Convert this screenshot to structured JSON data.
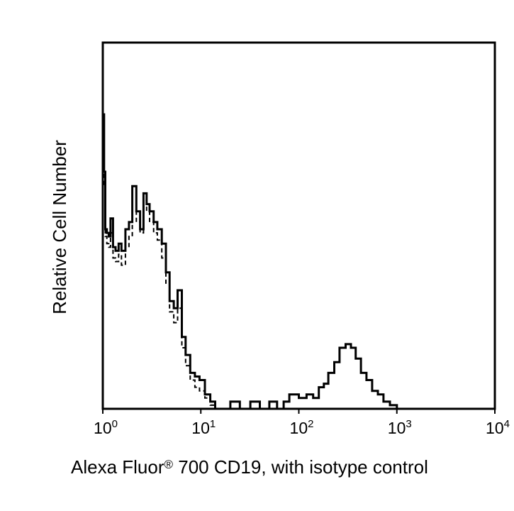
{
  "chart_data": {
    "type": "line",
    "ylabel": "Relative Cell Number",
    "xlabel_main": "Alexa Fluor",
    "xlabel_reg": "®",
    "xlabel_rest": " 700 CD19, with isotype control",
    "xscale": "log",
    "xlim": [
      1,
      10000
    ],
    "ylim": [
      0,
      100
    ],
    "grid": false,
    "x_ticks": [
      {
        "base": "10",
        "exp": "0",
        "value": 1
      },
      {
        "base": "10",
        "exp": "1",
        "value": 10
      },
      {
        "base": "10",
        "exp": "2",
        "value": 100
      },
      {
        "base": "10",
        "exp": "3",
        "value": 1000
      },
      {
        "base": "10",
        "exp": "4",
        "value": 10000
      }
    ],
    "series": [
      {
        "style": "solid",
        "x": [
          1.0,
          1.03,
          1.06,
          1.1,
          1.15,
          1.2,
          1.27,
          1.35,
          1.45,
          1.55,
          1.7,
          1.85,
          2.0,
          2.2,
          2.4,
          2.6,
          2.8,
          3.0,
          3.3,
          3.6,
          4.0,
          4.4,
          4.8,
          5.3,
          5.8,
          6.4,
          7.0,
          7.8,
          8.7,
          9.7,
          11,
          12.5,
          14,
          16,
          20,
          25,
          32,
          40,
          50,
          60,
          70,
          80,
          100,
          120,
          140,
          160,
          180,
          200,
          230,
          260,
          300,
          340,
          380,
          430,
          490,
          560,
          640,
          730,
          850,
          1000,
          1500,
          3000,
          10000
        ],
        "y": [
          82,
          66,
          50,
          49,
          48,
          53,
          45,
          44,
          46,
          44,
          50,
          52,
          62,
          55,
          50,
          60,
          57,
          55,
          52,
          50,
          46,
          38,
          30,
          28,
          33,
          20,
          15,
          10,
          9,
          8,
          4,
          2,
          0,
          0,
          2,
          0,
          2,
          0,
          2,
          0,
          2,
          4,
          3,
          4,
          3,
          6,
          7,
          10,
          13,
          17,
          18,
          17,
          14,
          10,
          8,
          5,
          4,
          2,
          1,
          0,
          0,
          0,
          0
        ]
      },
      {
        "style": "dashed",
        "x": [
          1.0,
          1.03,
          1.06,
          1.1,
          1.15,
          1.2,
          1.27,
          1.35,
          1.45,
          1.55,
          1.7,
          1.85,
          2.0,
          2.2,
          2.4,
          2.6,
          2.8,
          3.0,
          3.3,
          3.6,
          4.0,
          4.4,
          4.8,
          5.3,
          5.8,
          6.4,
          7.0,
          7.8,
          8.7,
          9.7,
          11,
          12.5,
          14,
          16,
          20,
          30,
          100,
          10000
        ],
        "y": [
          75,
          62,
          48,
          46,
          45,
          49,
          42,
          41,
          43,
          40,
          45,
          48,
          55,
          52,
          49,
          58,
          55,
          52,
          49,
          47,
          42,
          35,
          27,
          24,
          28,
          17,
          12,
          8,
          6,
          5,
          3,
          1,
          0,
          0,
          0,
          0,
          0,
          0
        ]
      }
    ]
  }
}
